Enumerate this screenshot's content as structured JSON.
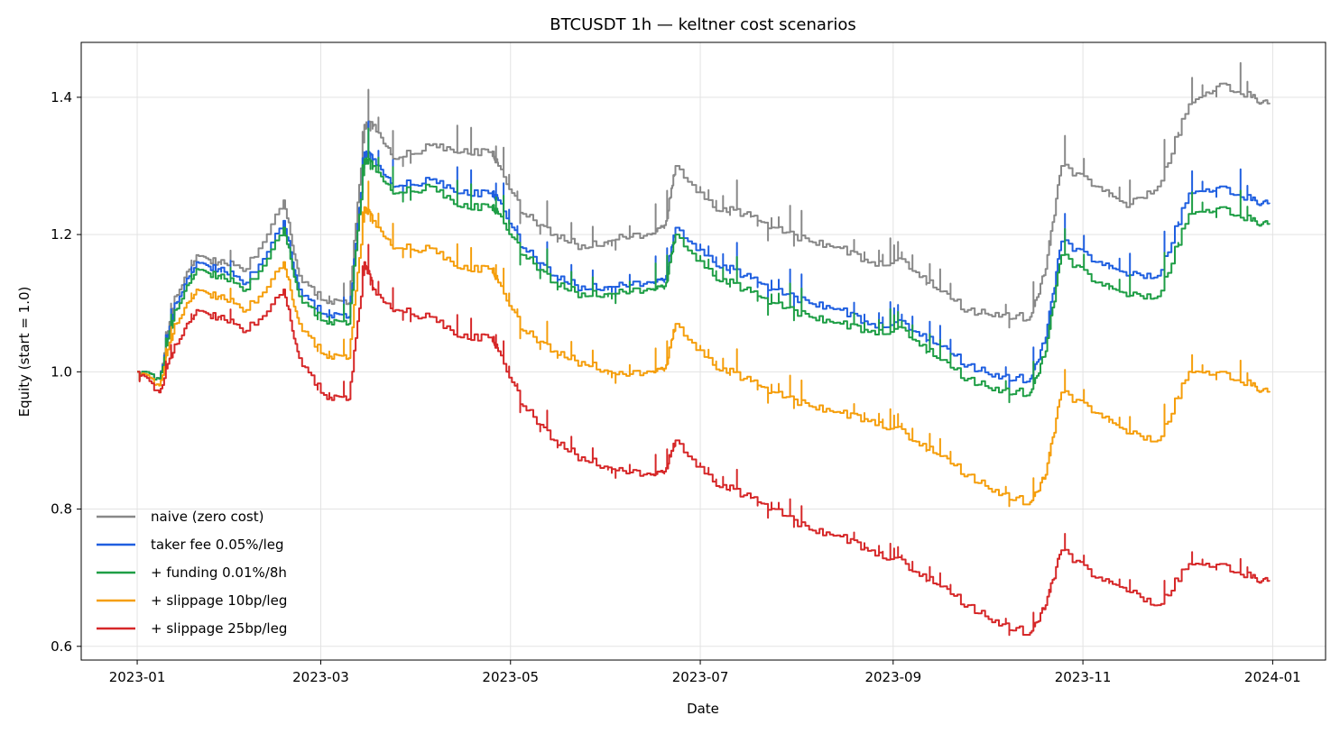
{
  "chart_data": {
    "type": "line",
    "title": "BTCUSDT 1h — keltner cost scenarios",
    "xlabel": "Date",
    "ylabel": "Equity (start = 1.0)",
    "xlim": [
      "2022-12-14",
      "2024-01-18"
    ],
    "ylim": [
      0.58,
      1.48
    ],
    "x_ticks": [
      "2023-01-01",
      "2023-03-01",
      "2023-05-01",
      "2023-07-01",
      "2023-09-01",
      "2023-11-01",
      "2024-01-01"
    ],
    "x_tick_labels": [
      "2023-01",
      "2023-03",
      "2023-05",
      "2023-07",
      "2023-09",
      "2023-11",
      "2024-01"
    ],
    "y_ticks": [
      0.6,
      0.8,
      1.0,
      1.2,
      1.4
    ],
    "y_tick_labels": [
      "0.6",
      "0.8",
      "1.0",
      "1.2",
      "1.4"
    ],
    "grid": true,
    "legend_position": "lower-left",
    "x": [
      "2023-01-01",
      "2023-01-08",
      "2023-01-13",
      "2023-01-20",
      "2023-01-27",
      "2023-02-05",
      "2023-02-17",
      "2023-02-22",
      "2023-03-03",
      "2023-03-10",
      "2023-03-15",
      "2023-03-18",
      "2023-03-25",
      "2023-04-05",
      "2023-04-15",
      "2023-04-25",
      "2023-04-27",
      "2023-05-05",
      "2023-05-15",
      "2023-05-25",
      "2023-06-05",
      "2023-06-15",
      "2023-06-20",
      "2023-06-23",
      "2023-07-05",
      "2023-07-15",
      "2023-07-25",
      "2023-08-05",
      "2023-08-15",
      "2023-08-25",
      "2023-09-05",
      "2023-09-15",
      "2023-09-25",
      "2023-10-05",
      "2023-10-15",
      "2023-10-20",
      "2023-10-25",
      "2023-11-05",
      "2023-11-15",
      "2023-11-25",
      "2023-12-05",
      "2023-12-15",
      "2023-12-25",
      "2023-12-31"
    ],
    "series": [
      {
        "name": "naive (zero cost)",
        "color": "#888888",
        "values": [
          1.0,
          0.99,
          1.11,
          1.17,
          1.16,
          1.15,
          1.25,
          1.14,
          1.1,
          1.1,
          1.36,
          1.36,
          1.31,
          1.33,
          1.32,
          1.32,
          1.3,
          1.23,
          1.2,
          1.18,
          1.2,
          1.2,
          1.22,
          1.3,
          1.24,
          1.23,
          1.21,
          1.19,
          1.18,
          1.16,
          1.16,
          1.12,
          1.09,
          1.08,
          1.08,
          1.15,
          1.3,
          1.27,
          1.24,
          1.27,
          1.39,
          1.42,
          1.4,
          1.39
        ]
      },
      {
        "name": "taker fee 0.05%/leg",
        "color": "#1f5fe0",
        "values": [
          1.0,
          0.99,
          1.1,
          1.16,
          1.15,
          1.13,
          1.22,
          1.12,
          1.08,
          1.08,
          1.32,
          1.31,
          1.27,
          1.28,
          1.26,
          1.26,
          1.25,
          1.18,
          1.14,
          1.12,
          1.13,
          1.13,
          1.14,
          1.21,
          1.16,
          1.14,
          1.12,
          1.1,
          1.09,
          1.07,
          1.07,
          1.04,
          1.01,
          0.99,
          0.99,
          1.05,
          1.19,
          1.16,
          1.14,
          1.14,
          1.26,
          1.27,
          1.25,
          1.245
        ]
      },
      {
        "name": "+ funding 0.01%/8h",
        "color": "#1e9e45",
        "values": [
          1.0,
          0.99,
          1.09,
          1.15,
          1.14,
          1.12,
          1.21,
          1.11,
          1.07,
          1.07,
          1.31,
          1.3,
          1.26,
          1.27,
          1.24,
          1.24,
          1.23,
          1.17,
          1.13,
          1.11,
          1.12,
          1.12,
          1.13,
          1.2,
          1.14,
          1.12,
          1.1,
          1.08,
          1.07,
          1.06,
          1.06,
          1.02,
          0.99,
          0.97,
          0.97,
          1.03,
          1.17,
          1.13,
          1.11,
          1.11,
          1.23,
          1.24,
          1.22,
          1.215
        ]
      },
      {
        "name": "+ slippage 10bp/leg",
        "color": "#f59e0b",
        "values": [
          1.0,
          0.98,
          1.07,
          1.12,
          1.11,
          1.09,
          1.16,
          1.07,
          1.02,
          1.02,
          1.24,
          1.22,
          1.18,
          1.18,
          1.15,
          1.15,
          1.13,
          1.06,
          1.03,
          1.01,
          1.0,
          1.0,
          1.01,
          1.07,
          1.01,
          0.99,
          0.97,
          0.95,
          0.94,
          0.93,
          0.91,
          0.88,
          0.85,
          0.82,
          0.81,
          0.85,
          0.97,
          0.94,
          0.91,
          0.9,
          1.0,
          1.0,
          0.98,
          0.97
        ]
      },
      {
        "name": "+ slippage 25bp/leg",
        "color": "#d62728",
        "values": [
          1.0,
          0.97,
          1.04,
          1.09,
          1.08,
          1.06,
          1.12,
          1.02,
          0.96,
          0.96,
          1.16,
          1.12,
          1.09,
          1.08,
          1.05,
          1.05,
          1.03,
          0.95,
          0.9,
          0.87,
          0.86,
          0.85,
          0.86,
          0.9,
          0.84,
          0.82,
          0.8,
          0.77,
          0.76,
          0.74,
          0.72,
          0.69,
          0.66,
          0.63,
          0.62,
          0.66,
          0.74,
          0.7,
          0.68,
          0.66,
          0.72,
          0.72,
          0.7,
          0.695
        ]
      }
    ]
  }
}
